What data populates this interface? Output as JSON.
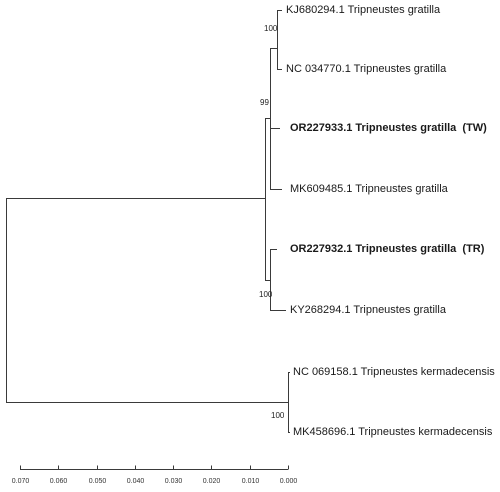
{
  "taxa": [
    {
      "id": "kj680294",
      "label": "KJ680294.1 Tripneustes gratilla",
      "bold": false
    },
    {
      "id": "nc034770",
      "label": "NC 034770.1 Tripneustes gratilla",
      "bold": false
    },
    {
      "id": "or227933",
      "label": "OR227933.1 Tripneustes gratilla  (TW)",
      "bold": true
    },
    {
      "id": "mk609485",
      "label": "MK609485.1 Tripneustes gratilla",
      "bold": false
    },
    {
      "id": "or227932",
      "label": "OR227932.1 Tripneustes gratilla  (TR)",
      "bold": true
    },
    {
      "id": "ky268294",
      "label": "KY268294.1 Tripneustes gratilla",
      "bold": false
    },
    {
      "id": "nc069158",
      "label": "NC 069158.1 Tripneustes kermadecensis",
      "bold": false
    },
    {
      "id": "mk458696",
      "label": "MK458696.1 Tripneustes kermadecensis",
      "bold": false
    }
  ],
  "bootstrap": {
    "kj_nc": "100",
    "gratilla_upper": "99",
    "or932_ky": "100",
    "kermadecensis": "100"
  },
  "axis": {
    "ticks": [
      "0.070",
      "0.060",
      "0.050",
      "0.040",
      "0.030",
      "0.020",
      "0.010",
      "0.000"
    ]
  },
  "colors": {
    "branch": "#3a3a3a",
    "text": "#1a1a1a"
  }
}
